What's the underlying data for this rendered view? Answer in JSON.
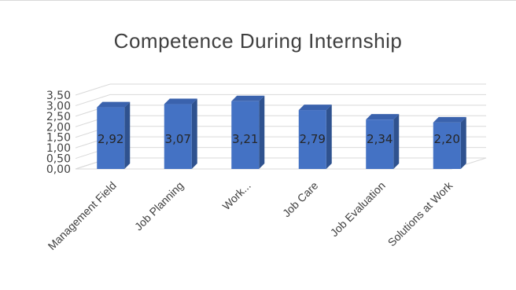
{
  "chart_data": {
    "type": "bar",
    "title": "Competence During Internship",
    "categories": [
      "Management Field",
      "Job Planning",
      "Work...",
      "Job Care",
      "Job Evaluation",
      "Solutions at Work"
    ],
    "values": [
      2.92,
      3.07,
      3.21,
      2.79,
      2.34,
      2.2
    ],
    "data_labels": [
      "2,92",
      "3,07",
      "3,21",
      "2,79",
      "2,34",
      "2,20"
    ],
    "y_ticks": [
      "0,00",
      "0,50",
      "1,00",
      "1,50",
      "2,00",
      "2,50",
      "3,00",
      "3,50"
    ],
    "ylim": [
      0,
      3.5
    ],
    "grid": true,
    "legend": "none",
    "style": "3d-column",
    "colors": {
      "front": "#4472c4",
      "side": "#2f528f",
      "top": "#3a62ad",
      "grid": "#d9d9d9"
    }
  }
}
